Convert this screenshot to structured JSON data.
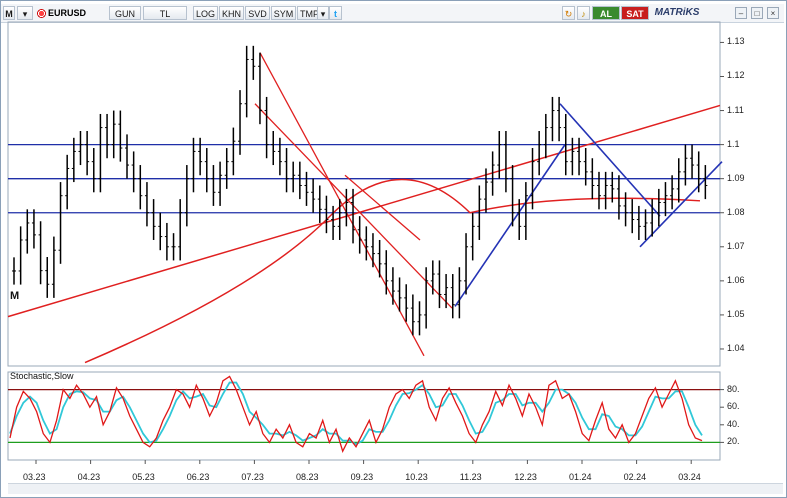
{
  "toolbar": {
    "menu_icon": "M",
    "symbol": "EURUSD",
    "buttons": [
      "GUN",
      "TL",
      "LOG",
      "KHN",
      "SVD",
      "SYM",
      "TMP"
    ],
    "dropdown_icon": "chevron-down-icon",
    "twitter_icon": "twitter-icon",
    "refresh_icon": "refresh-icon",
    "alert_icon": "bell-icon",
    "buy_label": "AL",
    "sell_label": "SAT",
    "brand": "MATRiKS",
    "window_buttons": [
      "–",
      "□",
      "×"
    ]
  },
  "price_panel": {
    "corner_label": "M",
    "y_ticks": [
      "1.13",
      "1.12",
      "1.11",
      "1.1",
      "1.09",
      "1.08",
      "1.07",
      "1.06",
      "1.05",
      "1.04"
    ]
  },
  "stoch_panel": {
    "title": "Stochastic,Slow",
    "y_ticks": [
      "80.",
      "60.",
      "40.",
      "20."
    ]
  },
  "x_axis": [
    "03.23",
    "04.23",
    "05.23",
    "06.23",
    "07.23",
    "08.23",
    "09.23",
    "10.23",
    "11.23",
    "12.23",
    "01.24",
    "02.24",
    "03.24"
  ],
  "colors": {
    "price_bars": "#000000",
    "horizontal_lines": "#1f2fa8",
    "trend_red": "#e02020",
    "trend_blue": "#2433b5",
    "stoch_k": "#e01818",
    "stoch_d": "#30c8d8",
    "upper_band": "#8a1010",
    "lower_band": "#1e9e1e"
  },
  "chart_data": {
    "type": "bar",
    "instrument": "EURUSD",
    "x_labels": [
      "03.23",
      "04.23",
      "05.23",
      "06.23",
      "07.23",
      "08.23",
      "09.23",
      "10.23",
      "11.23",
      "12.23",
      "01.24",
      "02.24",
      "03.24"
    ],
    "closes": [
      1.0629,
      1.072,
      1.077,
      1.0735,
      1.063,
      1.059,
      1.069,
      1.085,
      1.093,
      1.098,
      1.1,
      1.095,
      1.09,
      1.105,
      1.1,
      1.106,
      1.099,
      1.094,
      1.09,
      1.085,
      1.08,
      1.076,
      1.073,
      1.07,
      1.07,
      1.08,
      1.09,
      1.098,
      1.095,
      1.09,
      1.086,
      1.091,
      1.095,
      1.101,
      1.112,
      1.125,
      1.123,
      1.11,
      1.1,
      1.098,
      1.095,
      1.09,
      1.091,
      1.088,
      1.086,
      1.084,
      1.081,
      1.078,
      1.076,
      1.08,
      1.083,
      1.075,
      1.072,
      1.07,
      1.068,
      1.065,
      1.06,
      1.057,
      1.055,
      1.052,
      1.048,
      1.05,
      1.06,
      1.062,
      1.056,
      1.058,
      1.053,
      1.06,
      1.07,
      1.076,
      1.084,
      1.089,
      1.094,
      1.1,
      1.09,
      1.08,
      1.076,
      1.085,
      1.095,
      1.1,
      1.105,
      1.11,
      1.105,
      1.095,
      1.098,
      1.095,
      1.092,
      1.088,
      1.085,
      1.088,
      1.087,
      1.082,
      1.08,
      1.078,
      1.076,
      1.077,
      1.08,
      1.083,
      1.085,
      1.087,
      1.092,
      1.096,
      1.094,
      1.09,
      1.088
    ],
    "ylim": [
      1.035,
      1.136
    ],
    "horizontal_levels": [
      1.1,
      1.09,
      1.08
    ],
    "stochastic": {
      "name": "Stochastic,Slow",
      "ylim": [
        0,
        100
      ],
      "levels": [
        80,
        20
      ],
      "k": [
        25,
        60,
        78,
        70,
        55,
        30,
        20,
        45,
        80,
        70,
        85,
        75,
        60,
        72,
        40,
        55,
        82,
        70,
        50,
        35,
        20,
        15,
        25,
        45,
        60,
        80,
        75,
        60,
        85,
        70,
        50,
        65,
        90,
        95,
        80,
        60,
        40,
        55,
        30,
        20,
        35,
        25,
        40,
        20,
        15,
        30,
        25,
        45,
        20,
        35,
        10,
        25,
        15,
        30,
        45,
        20,
        35,
        60,
        75,
        80,
        70,
        85,
        90,
        60,
        45,
        70,
        82,
        65,
        50,
        30,
        20,
        40,
        55,
        78,
        62,
        85,
        70,
        50,
        75,
        60,
        40,
        85,
        90,
        70,
        75,
        55,
        30,
        22,
        45,
        65,
        35,
        25,
        40,
        20,
        30,
        50,
        70,
        82,
        60,
        75,
        90,
        70,
        40,
        25,
        22
      ],
      "d": [
        30,
        50,
        65,
        72,
        65,
        45,
        30,
        35,
        60,
        75,
        78,
        77,
        70,
        68,
        55,
        55,
        68,
        72,
        60,
        45,
        30,
        20,
        22,
        35,
        50,
        68,
        78,
        70,
        72,
        75,
        62,
        60,
        75,
        88,
        88,
        75,
        55,
        48,
        40,
        30,
        30,
        28,
        32,
        28,
        22,
        25,
        28,
        35,
        30,
        30,
        22,
        22,
        18,
        22,
        35,
        32,
        32,
        45,
        62,
        75,
        76,
        80,
        85,
        75,
        60,
        62,
        75,
        75,
        62,
        45,
        30,
        32,
        45,
        65,
        68,
        75,
        75,
        62,
        65,
        65,
        55,
        65,
        80,
        80,
        75,
        65,
        48,
        35,
        35,
        52,
        50,
        38,
        35,
        28,
        28,
        38,
        55,
        72,
        70,
        70,
        78,
        78,
        60,
        40,
        28
      ]
    }
  }
}
